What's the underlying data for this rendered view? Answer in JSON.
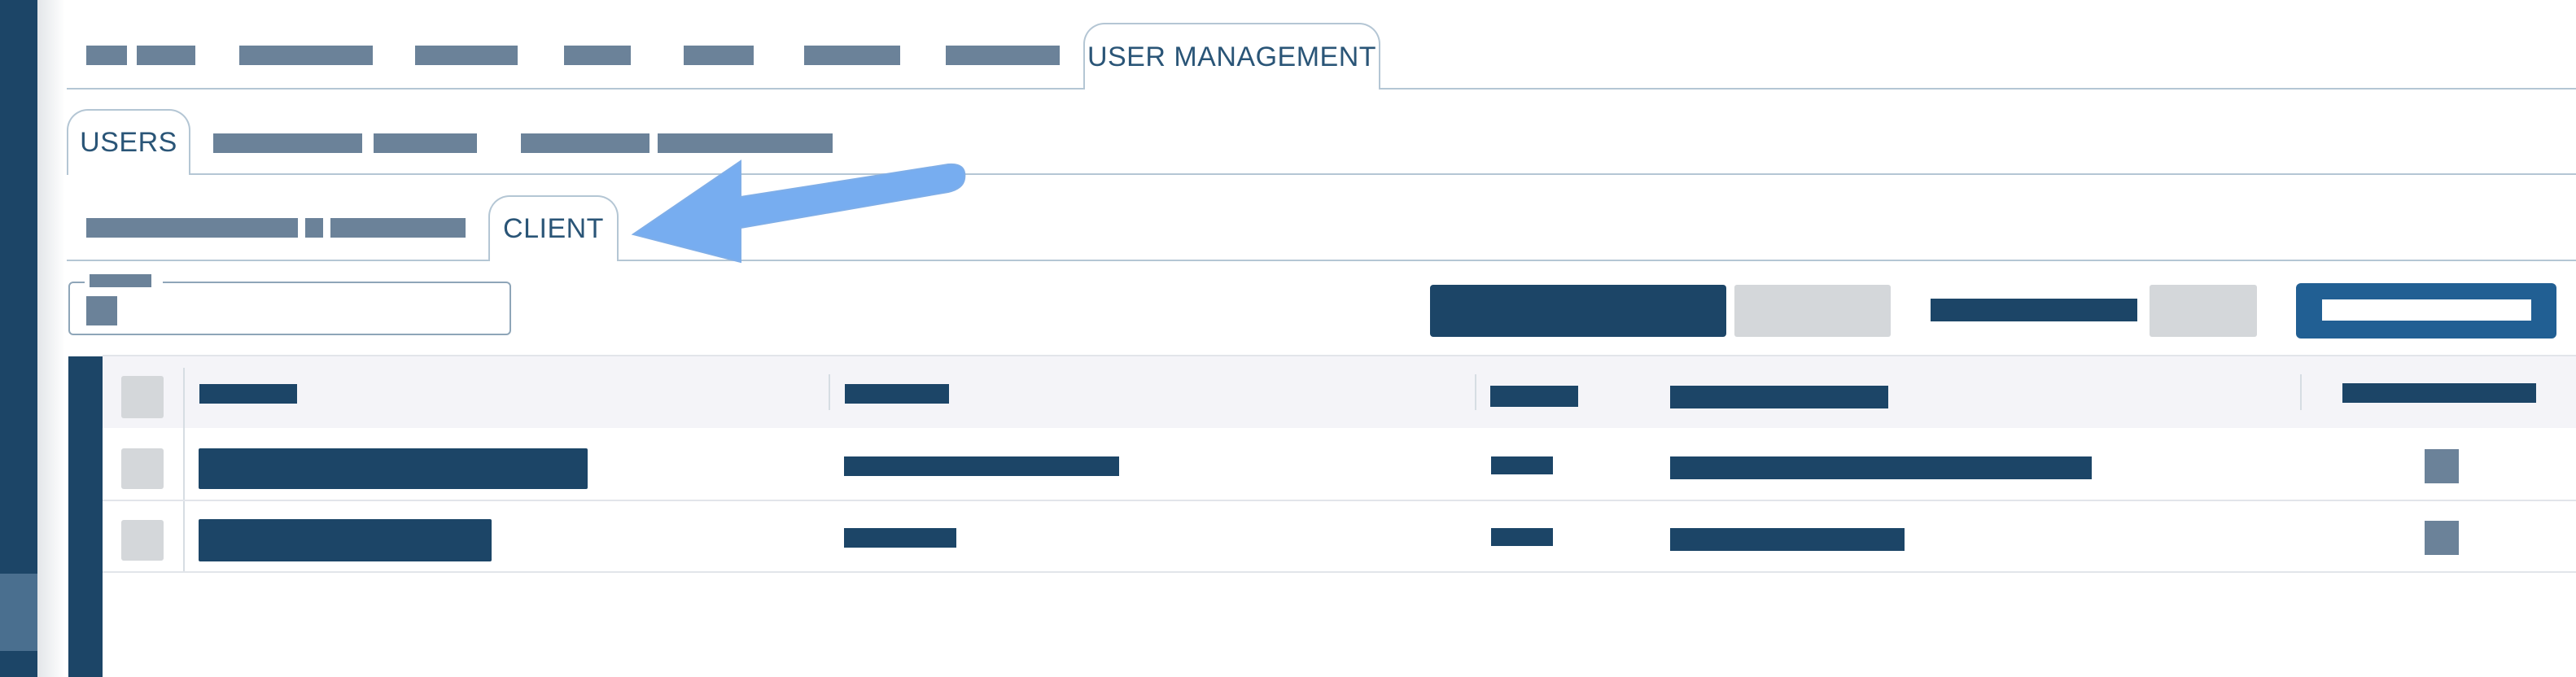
{
  "tabs_level1": {
    "active_label": "USER MANAGEMENT"
  },
  "tabs_level2": {
    "active_label": "USERS"
  },
  "tabs_level3": {
    "active_label": "CLIENT"
  },
  "colors": {
    "sidebar": "#1c4567",
    "accent": "#215f93",
    "arrow": "#77adf0",
    "redacted": "#6b8299",
    "text_primary": "#1c4567"
  },
  "icons": {
    "annotation": "arrow-left-icon"
  }
}
